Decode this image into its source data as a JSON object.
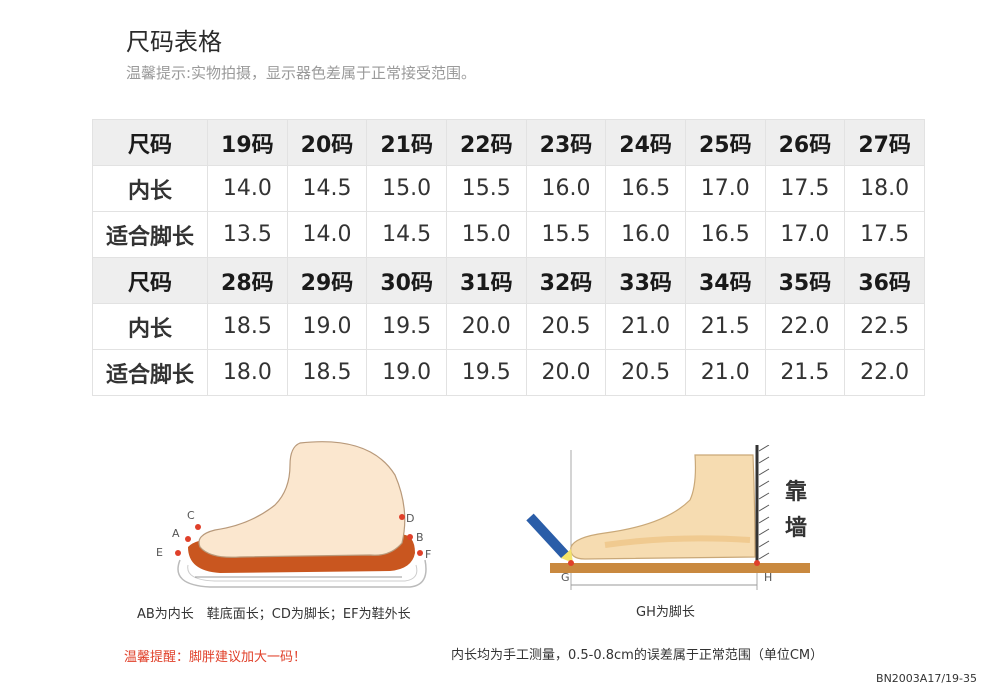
{
  "title": "尺码表格",
  "subtitle": "温馨提示:实物拍摄，显示器色差属于正常接受范围。",
  "table": {
    "rows": [
      {
        "type": "header",
        "label": "尺码",
        "cells": [
          "19码",
          "20码",
          "21码",
          "22码",
          "23码",
          "24码",
          "25码",
          "26码",
          "27码"
        ]
      },
      {
        "type": "value",
        "label": "内长",
        "cells": [
          "14.0",
          "14.5",
          "15.0",
          "15.5",
          "16.0",
          "16.5",
          "17.0",
          "17.5",
          "18.0"
        ]
      },
      {
        "type": "value",
        "label": "适合脚长",
        "cells": [
          "13.5",
          "14.0",
          "14.5",
          "15.0",
          "15.5",
          "16.0",
          "16.5",
          "17.0",
          "17.5"
        ]
      },
      {
        "type": "header",
        "label": "尺码",
        "cells": [
          "28码",
          "29码",
          "30码",
          "31码",
          "32码",
          "33码",
          "34码",
          "35码",
          "36码"
        ]
      },
      {
        "type": "value",
        "label": "内长",
        "cells": [
          "18.5",
          "19.0",
          "19.5",
          "20.0",
          "20.5",
          "21.0",
          "21.5",
          "22.0",
          "22.5"
        ]
      },
      {
        "type": "value",
        "label": "适合脚长",
        "cells": [
          "18.0",
          "18.5",
          "19.0",
          "19.5",
          "20.0",
          "20.5",
          "21.0",
          "21.5",
          "22.0"
        ]
      }
    ]
  },
  "figure1": {
    "labels": {
      "a": "A",
      "b": "B",
      "c": "C",
      "d": "D",
      "e": "E",
      "f": "F"
    },
    "caption": "AB为内长　鞋底面长；CD为脚长；EF为鞋外长"
  },
  "figure2": {
    "labels": {
      "g": "G",
      "h": "H"
    },
    "wall_text": "靠墙",
    "caption": "GH为脚长"
  },
  "tip": "温馨提醒：脚胖建议加大一码！",
  "note": "内长均为手工测量，0.5-0.8cm的误差属于正常范围（单位CM）",
  "code": "BN2003A17/19-35",
  "colors": {
    "header_bg": "#eeeeee",
    "tip": "#e0402a",
    "foot": "#fbe7cf",
    "sole": "#c9561f",
    "floor": "#c9893f"
  }
}
